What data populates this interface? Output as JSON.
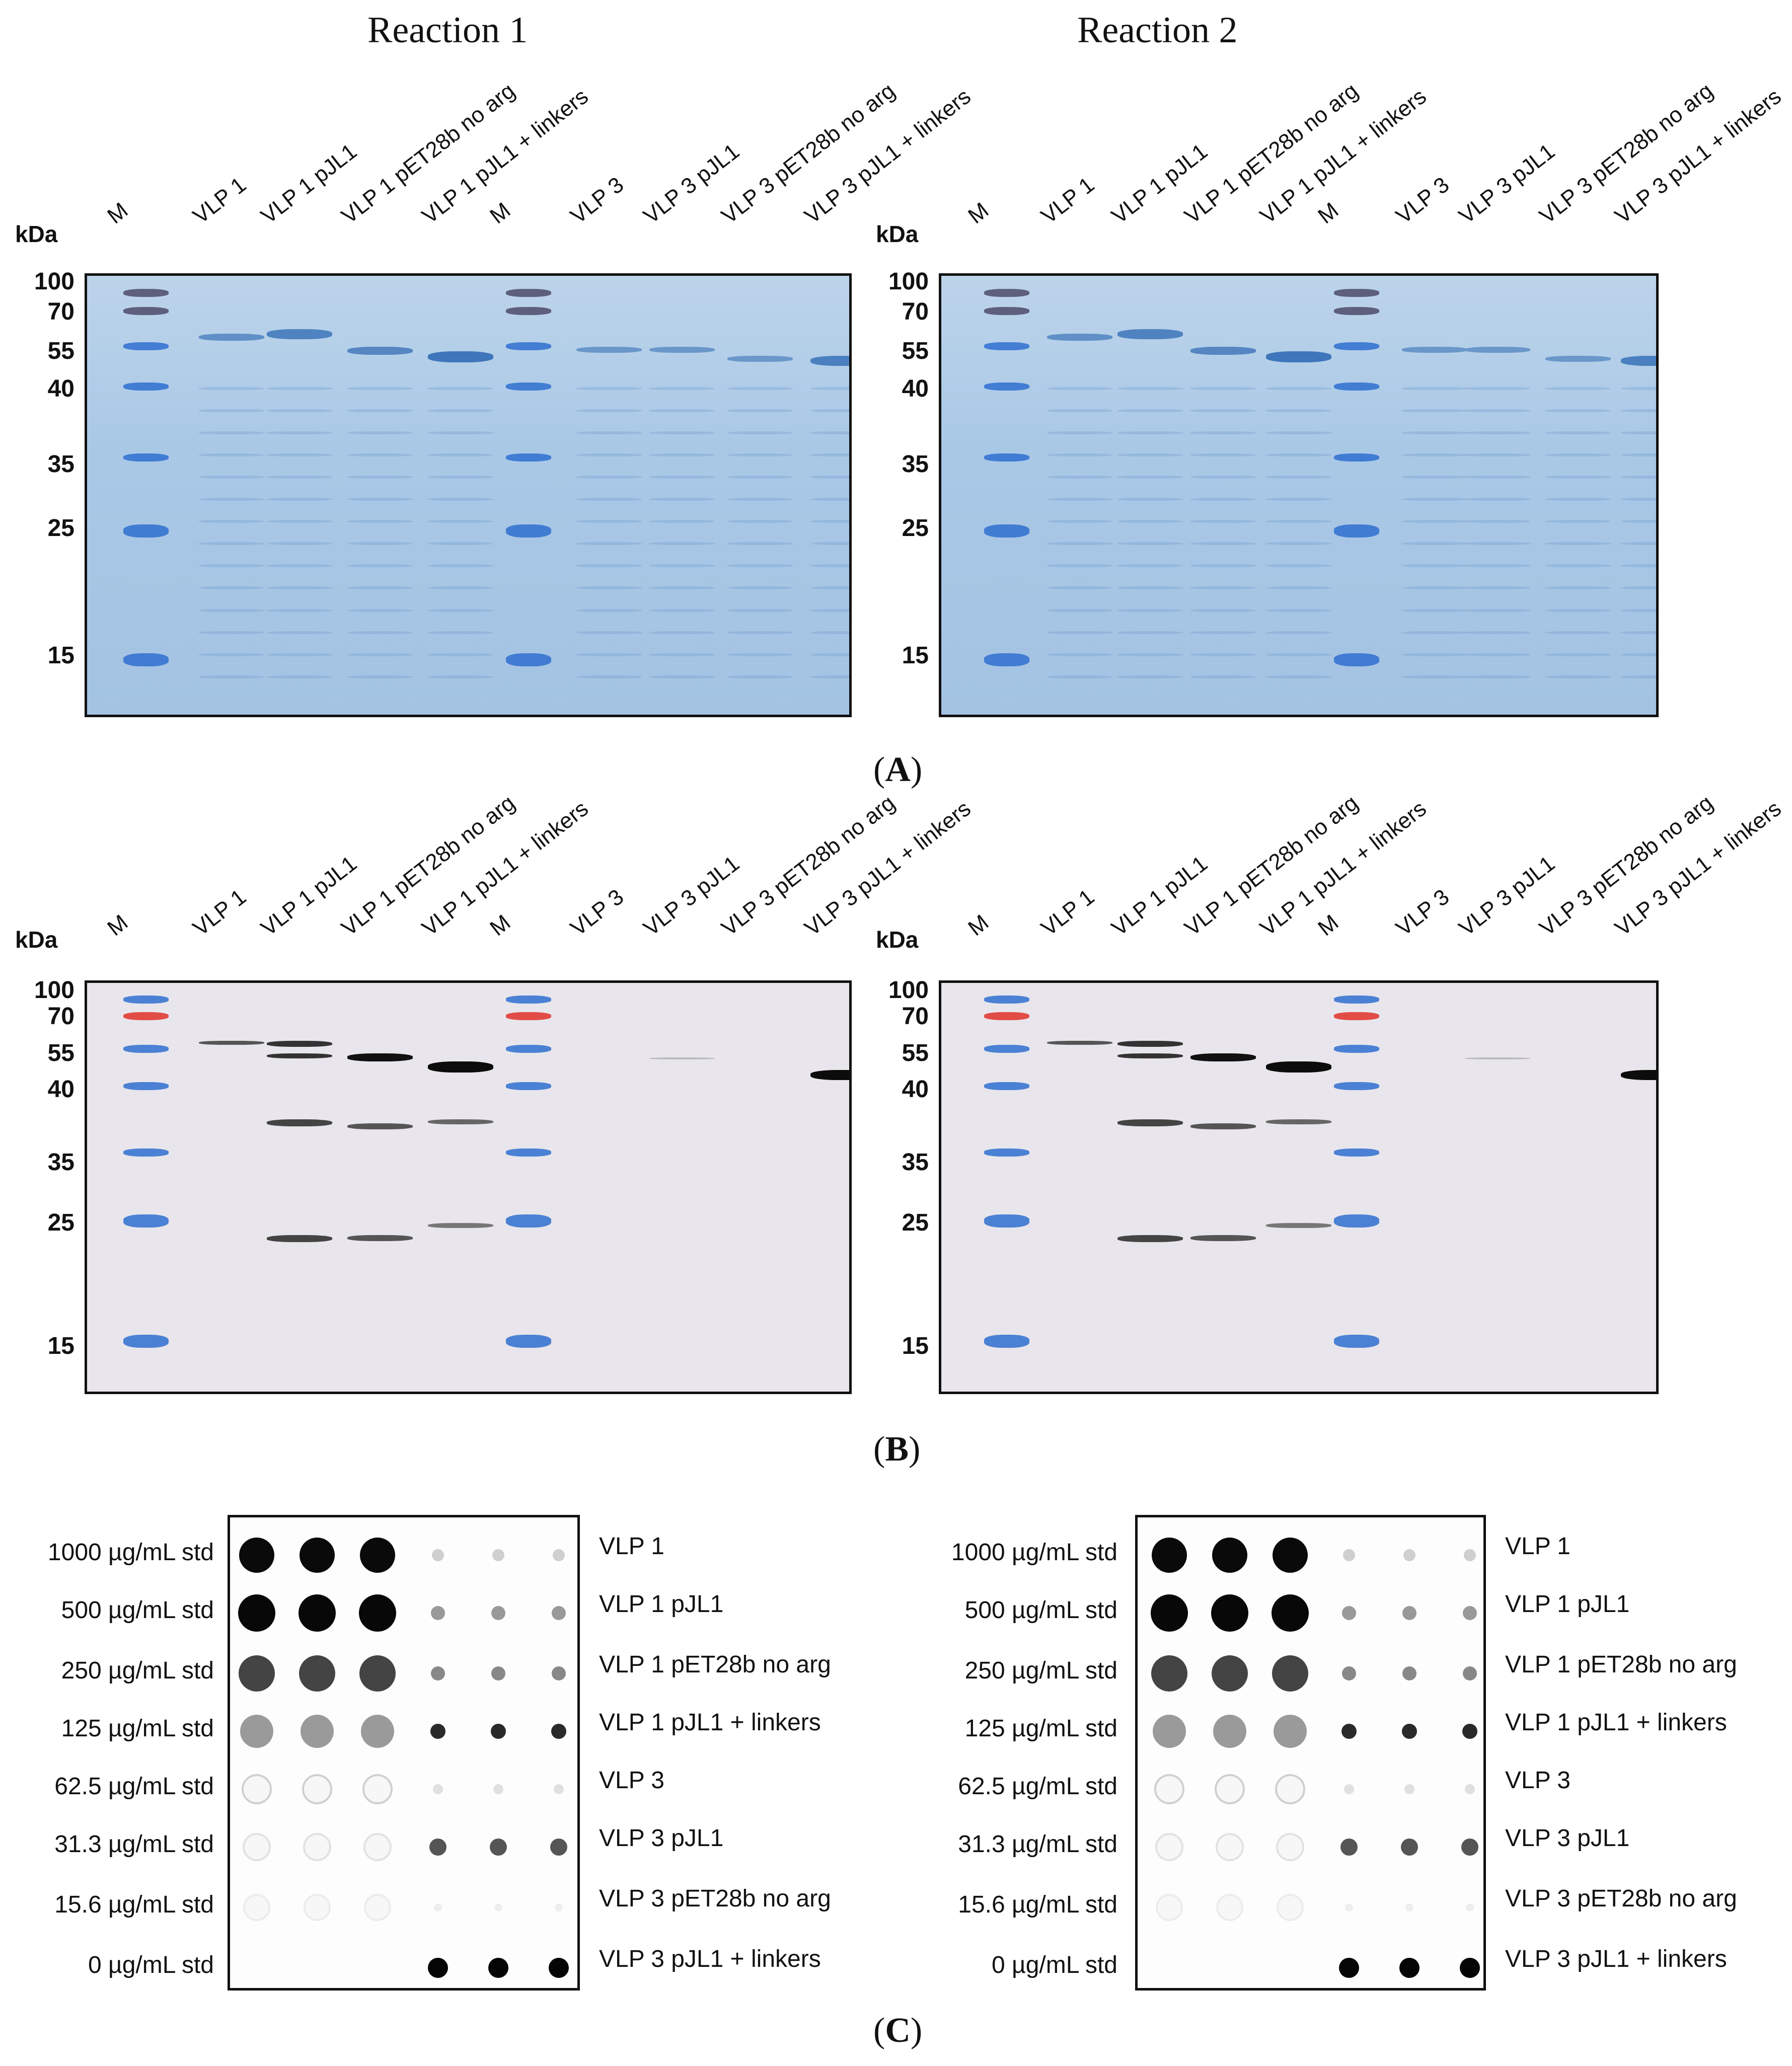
{
  "reaction_titles": [
    "Reaction 1",
    "Reaction 2"
  ],
  "kda_label": "kDa",
  "mw_markers": [
    "100",
    "70",
    "55",
    "40",
    "35",
    "25",
    "15"
  ],
  "lane_labels": [
    "M",
    "VLP 1",
    "VLP 1 pJL1",
    "VLP 1 pET28b no arg",
    "VLP 1 pJL1 + linkers",
    "M",
    "VLP 3",
    "VLP 3 pJL1",
    "VLP 3 pET28b no arg",
    "VLP 3 pJL1 + linkers"
  ],
  "panel_letters": [
    "A",
    "B",
    "C"
  ],
  "dot_blot": {
    "standards": [
      "1000 µg/mL std",
      "500 µg/mL std",
      "250 µg/mL std",
      "125 µg/mL std",
      "62.5 µg/mL std",
      "31.3 µg/mL std",
      "15.6 µg/mL std",
      "0 µg/mL std"
    ],
    "samples": [
      "VLP 1",
      "VLP 1 pJL1",
      "VLP 1 pET28b no arg",
      "VLP 1 pJL1 + linkers",
      "VLP 3",
      "VLP 3 pJL1",
      "VLP 3 pET28b no arg",
      "VLP 3 pJL1 + linkers"
    ]
  },
  "colors": {
    "coomassie": "#a9c8e6",
    "marker_red": "#e0302a",
    "marker_blue": "#2f6fd0",
    "band_dark": "#111111"
  }
}
